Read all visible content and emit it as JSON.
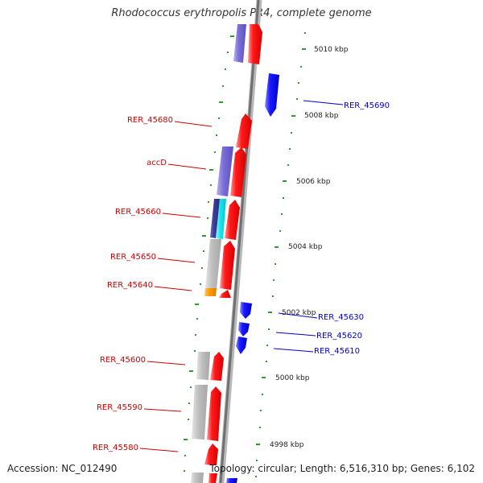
{
  "title": "Rhodococcus erythropolis PR4, complete genome",
  "footer": {
    "accession": "Accession: NC_012490",
    "summary": "Topology: circular; Length: 6,516,310 bp; Genes: 6,102"
  },
  "colors": {
    "forward_cds": "#ff1a1a",
    "reverse_cds": "#1a1aff",
    "purple_feature": "#7a6ed8",
    "navy_feature": "#3d3d99",
    "cyan_feature": "#1ae5ef",
    "gray_feature": "#c0c0c0",
    "orange_feature": "#ff9900",
    "tick": "#339933",
    "backbone": "#888888",
    "label_red": "#cc0000",
    "label_blue": "#0000cc"
  },
  "scale_labels": [
    "5010 kbp",
    "5008 kbp",
    "5006 kbp",
    "5004 kbp",
    "5002 kbp",
    "5000 kbp",
    "4998 kbp"
  ],
  "gene_labels_left": [
    "RER_45680",
    "accD",
    "RER_45660",
    "RER_45650",
    "RER_45640",
    "RER_45600",
    "RER_45590",
    "RER_45580"
  ],
  "gene_labels_right": [
    "RER_45690",
    "RER_45630",
    "RER_45620",
    "RER_45610"
  ]
}
